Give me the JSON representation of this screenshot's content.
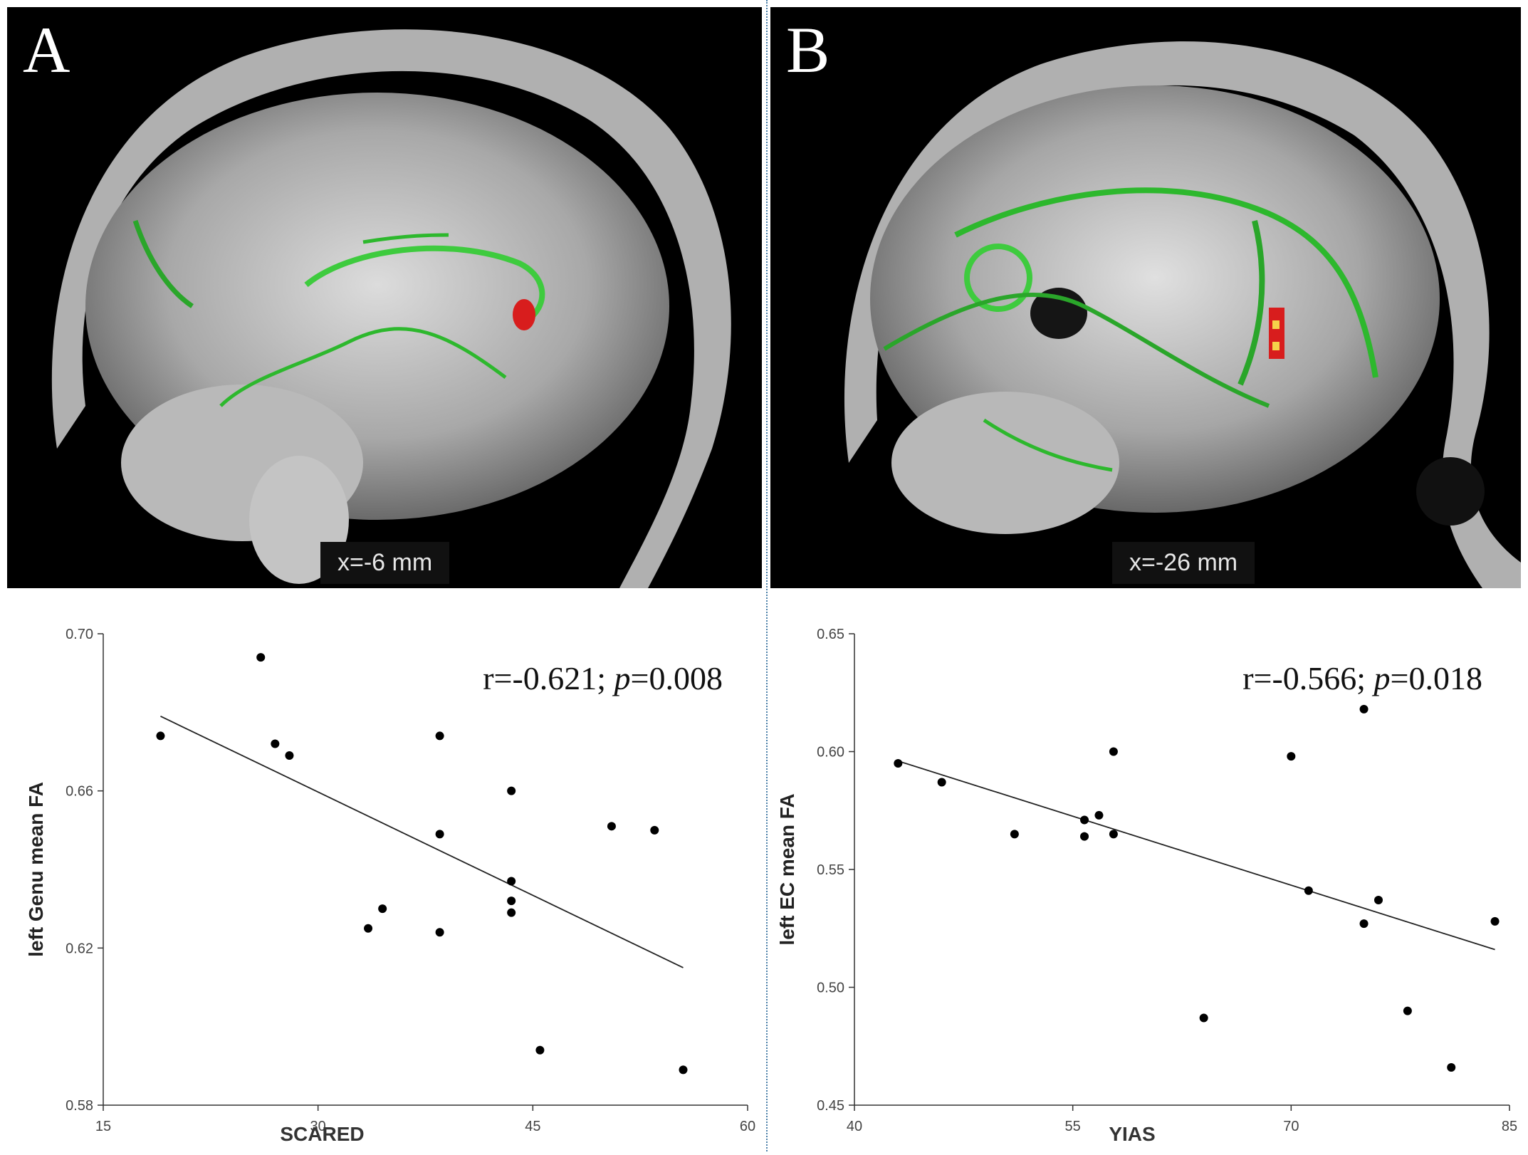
{
  "panels": [
    {
      "letter": "A",
      "coord_label": "x=-6 mm"
    },
    {
      "letter": "B",
      "coord_label": "x=-26 mm"
    }
  ],
  "chart_data": [
    {
      "type": "scatter",
      "xlabel": "SCARED",
      "ylabel": "left Genu mean FA",
      "xlim": [
        15,
        60
      ],
      "ylim": [
        0.58,
        0.7
      ],
      "xticks": [
        "15",
        "30",
        "45",
        "60"
      ],
      "yticks": [
        "0.58",
        "0.62",
        "0.66",
        "0.70"
      ],
      "annotation": {
        "prefix": "r=-0.621; ",
        "italic": "p",
        "suffix": "=0.008"
      },
      "points": [
        {
          "x": 19,
          "y": 0.674
        },
        {
          "x": 26,
          "y": 0.694
        },
        {
          "x": 27,
          "y": 0.672
        },
        {
          "x": 28,
          "y": 0.669
        },
        {
          "x": 33.5,
          "y": 0.625
        },
        {
          "x": 34.5,
          "y": 0.63
        },
        {
          "x": 38.5,
          "y": 0.674
        },
        {
          "x": 38.5,
          "y": 0.649
        },
        {
          "x": 38.5,
          "y": 0.624
        },
        {
          "x": 43.5,
          "y": 0.66
        },
        {
          "x": 43.5,
          "y": 0.637
        },
        {
          "x": 43.5,
          "y": 0.632
        },
        {
          "x": 43.5,
          "y": 0.629
        },
        {
          "x": 45.5,
          "y": 0.594
        },
        {
          "x": 50.5,
          "y": 0.651
        },
        {
          "x": 53.5,
          "y": 0.65
        },
        {
          "x": 55.5,
          "y": 0.589
        }
      ],
      "fit_line": {
        "x": [
          19,
          55.5
        ],
        "y": [
          0.679,
          0.615
        ]
      }
    },
    {
      "type": "scatter",
      "xlabel": "YIAS",
      "ylabel": "left EC mean FA",
      "xlim": [
        40,
        85
      ],
      "ylim": [
        0.45,
        0.65
      ],
      "xticks": [
        "40",
        "55",
        "70",
        "85"
      ],
      "yticks": [
        "0.45",
        "0.50",
        "0.55",
        "0.60",
        "0.65"
      ],
      "annotation": {
        "prefix": "r=-0.566; ",
        "italic": "p",
        "suffix": "=0.018"
      },
      "points": [
        {
          "x": 43,
          "y": 0.595
        },
        {
          "x": 46,
          "y": 0.587
        },
        {
          "x": 51,
          "y": 0.565
        },
        {
          "x": 55.8,
          "y": 0.571
        },
        {
          "x": 55.8,
          "y": 0.564
        },
        {
          "x": 56.8,
          "y": 0.573
        },
        {
          "x": 57.8,
          "y": 0.6
        },
        {
          "x": 57.8,
          "y": 0.565
        },
        {
          "x": 64,
          "y": 0.487
        },
        {
          "x": 70,
          "y": 0.598
        },
        {
          "x": 71.2,
          "y": 0.541
        },
        {
          "x": 75,
          "y": 0.618
        },
        {
          "x": 75,
          "y": 0.527
        },
        {
          "x": 76,
          "y": 0.537
        },
        {
          "x": 78,
          "y": 0.49
        },
        {
          "x": 81,
          "y": 0.466
        },
        {
          "x": 84,
          "y": 0.528
        }
      ],
      "fit_line": {
        "x": [
          43,
          84
        ],
        "y": [
          0.596,
          0.516
        ]
      }
    }
  ]
}
